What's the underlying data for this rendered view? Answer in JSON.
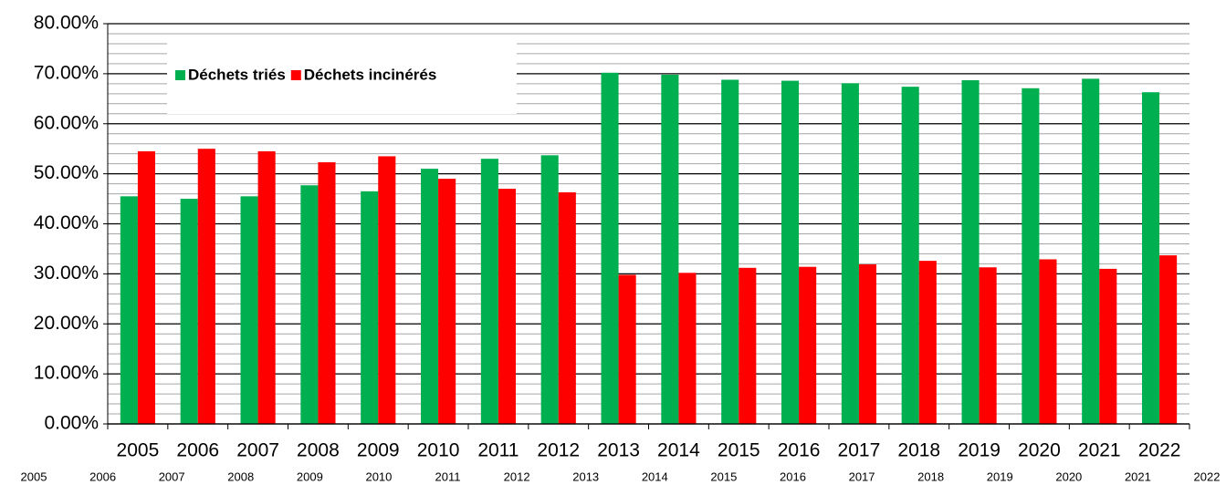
{
  "chart_data": {
    "type": "bar",
    "categories": [
      "2005",
      "2006",
      "2007",
      "2008",
      "2009",
      "2010",
      "2011",
      "2012",
      "2013",
      "2014",
      "2015",
      "2016",
      "2017",
      "2018",
      "2019",
      "2020",
      "2021",
      "2022"
    ],
    "secondary_labels": [
      "2005",
      "2006",
      "2007",
      "2008",
      "2009",
      "2010",
      "2011",
      "2012",
      "2013",
      "2014",
      "2015",
      "2016",
      "2017",
      "2018",
      "2019",
      "2020",
      "2021",
      "2022"
    ],
    "series": [
      {
        "name": "Déchets triés",
        "color": "#00b050",
        "values": [
          45.5,
          45,
          45.5,
          47.7,
          46.5,
          51,
          53,
          53.7,
          70.2,
          69.8,
          68.8,
          68.6,
          68.1,
          67.4,
          68.7,
          67.1,
          69,
          66.3
        ]
      },
      {
        "name": "Déchets incinérés",
        "color": "#ff0000",
        "values": [
          54.5,
          55,
          54.5,
          52.3,
          53.5,
          49,
          47,
          46.3,
          29.8,
          30.2,
          31.2,
          31.4,
          31.9,
          32.6,
          31.3,
          32.9,
          31,
          33.7
        ]
      }
    ],
    "ylim": [
      0,
      80
    ],
    "yticks": [
      {
        "value": 0,
        "label": "0.00%"
      },
      {
        "value": 10,
        "label": "10.00%"
      },
      {
        "value": 20,
        "label": "20.00%"
      },
      {
        "value": 30,
        "label": "30.00%"
      },
      {
        "value": 40,
        "label": "40.00%"
      },
      {
        "value": 50,
        "label": "50.00%"
      },
      {
        "value": 60,
        "label": "60.00%"
      },
      {
        "value": 70,
        "label": "70.00%"
      },
      {
        "value": 80,
        "label": "80.00%"
      }
    ],
    "minor_yticks": [
      2,
      4,
      6,
      8,
      12,
      14,
      16,
      18,
      22,
      24,
      26,
      28,
      32,
      34,
      36,
      38,
      42,
      44,
      46,
      48,
      52,
      54,
      56,
      58,
      62,
      64,
      66,
      68,
      72,
      74,
      76,
      78
    ],
    "grid": true,
    "legend": "upper left"
  }
}
